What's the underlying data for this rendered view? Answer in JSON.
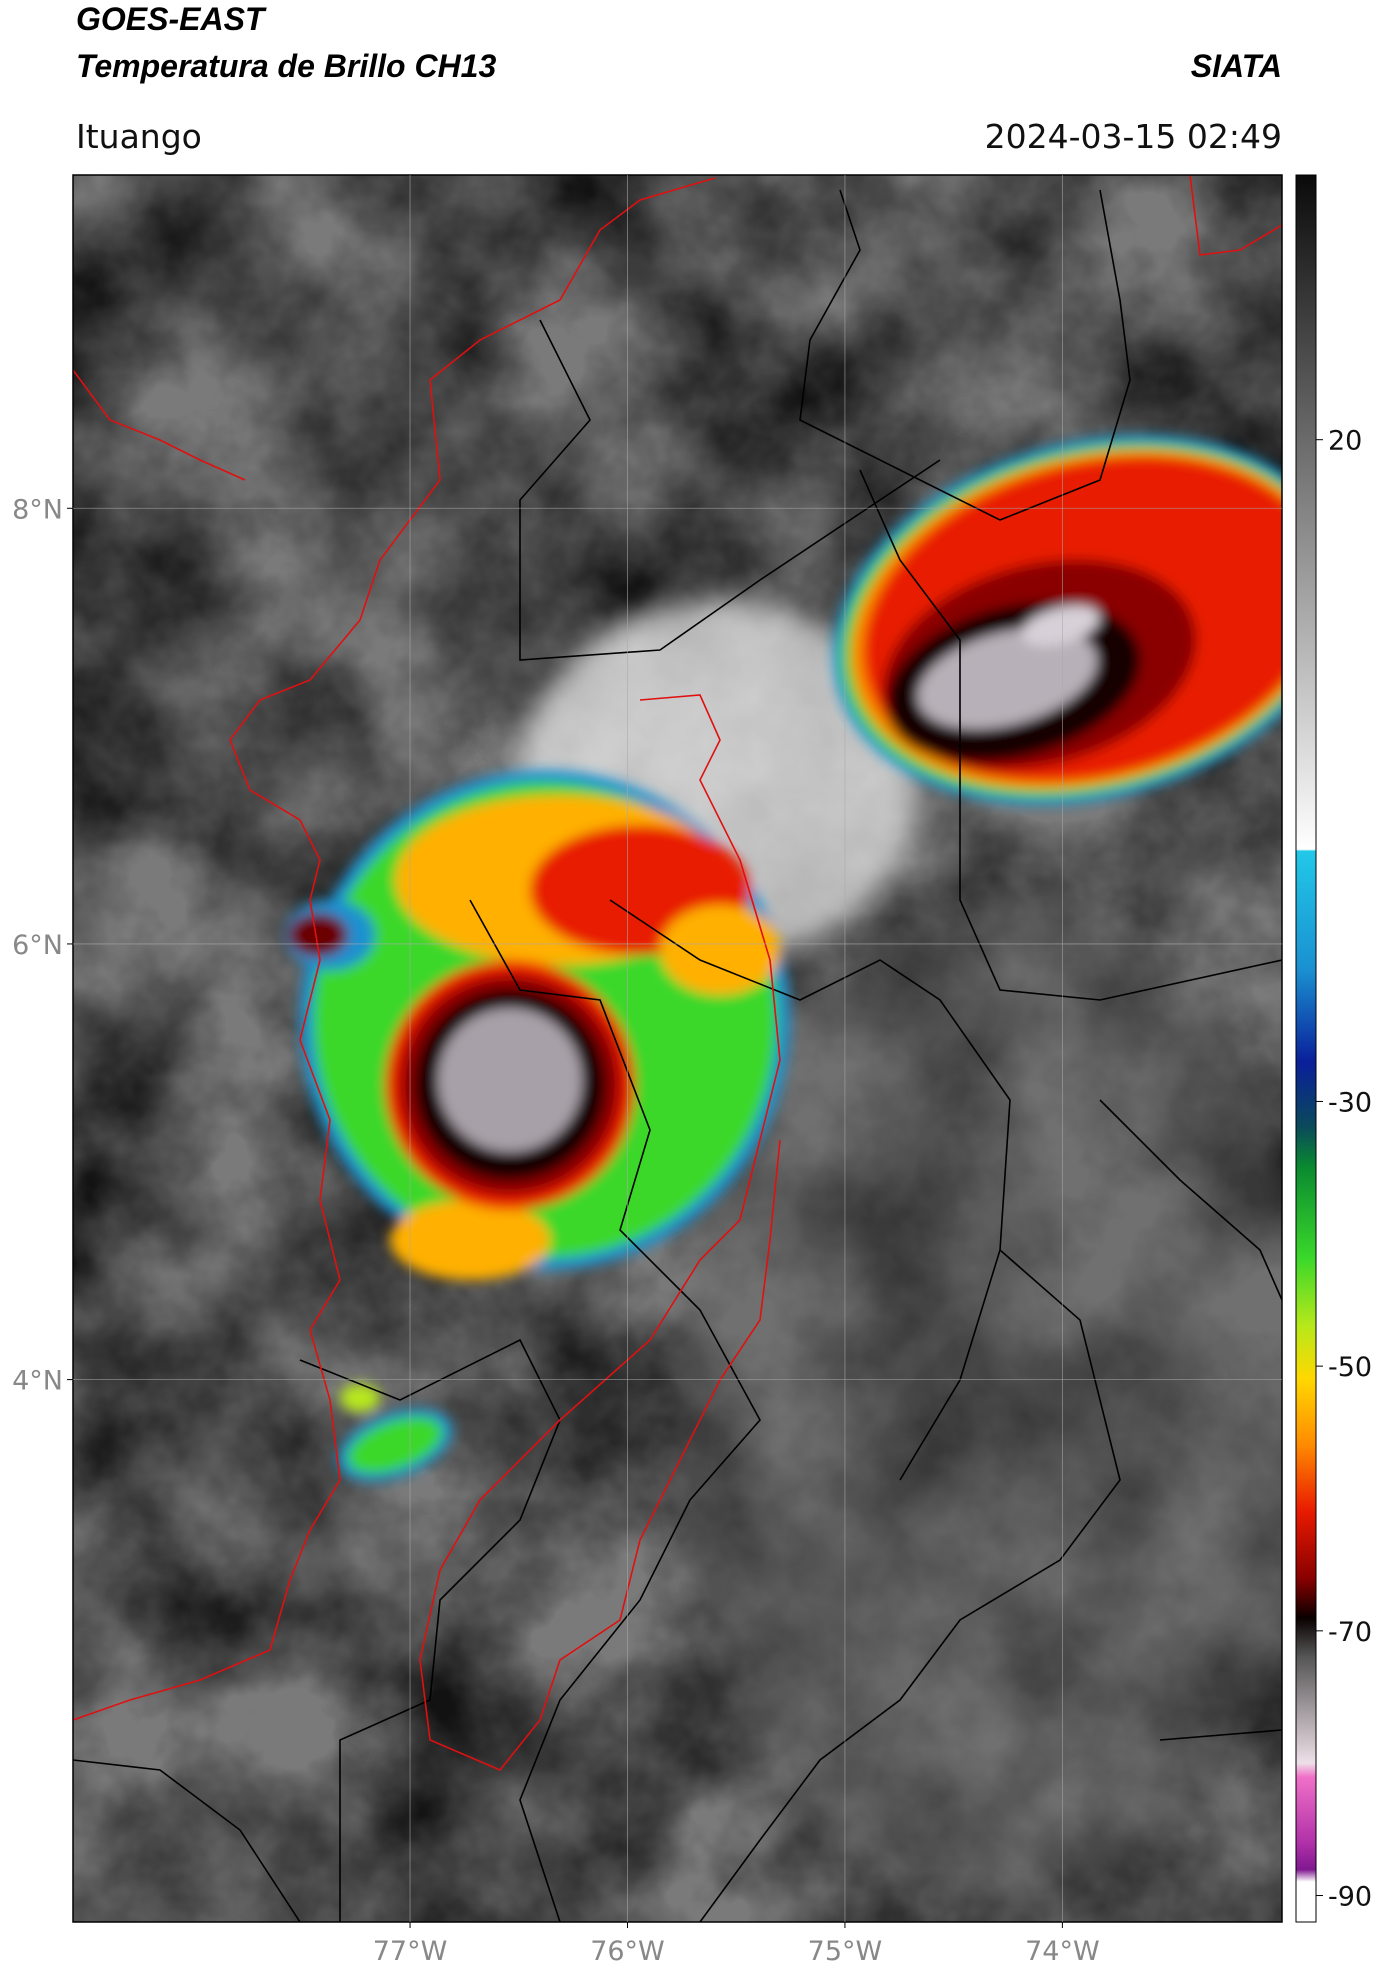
{
  "header": {
    "title": "GOES-EAST",
    "subtitle": "Temperatura de Brillo CH13",
    "organization": "SIATA",
    "location": "Ituango",
    "datetime": "2024-03-15 02:49"
  },
  "map": {
    "xlim": [
      -78.55,
      -72.99
    ],
    "ylim": [
      1.51,
      9.53
    ],
    "grid": true,
    "xticks": [
      {
        "value": -77,
        "label": "77°W"
      },
      {
        "value": -76,
        "label": "76°W"
      },
      {
        "value": -75,
        "label": "75°W"
      },
      {
        "value": -74,
        "label": "74°W"
      }
    ],
    "yticks": [
      {
        "value": 8,
        "label": "8°N"
      },
      {
        "value": 6,
        "label": "6°N"
      },
      {
        "value": 4,
        "label": "4°N"
      }
    ]
  },
  "colorbar": {
    "clim": [
      -92,
      40
    ],
    "ticks": [
      20,
      -30,
      -50,
      -70,
      -90
    ]
  }
}
